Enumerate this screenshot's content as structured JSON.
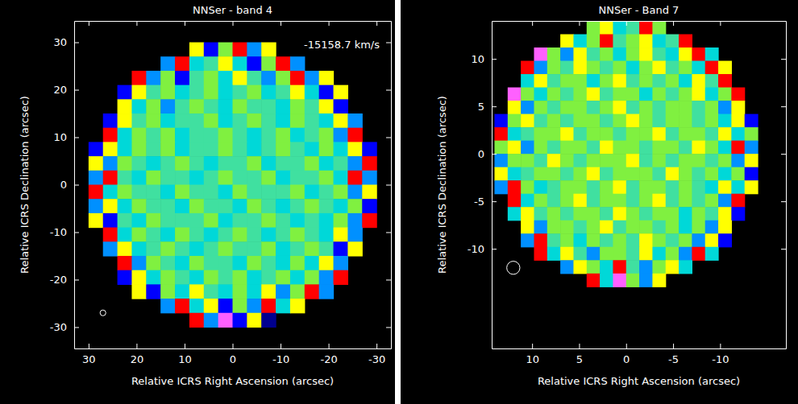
{
  "chart_data": [
    {
      "type": "heatmap",
      "title": "NNSer - band 4",
      "x_label": "Relative ICRS Right Ascension (arcsec)",
      "y_label": "Relative ICRS Declination (arcsec)",
      "annotation": "-15158.7 km/s",
      "xlim": [
        33,
        -33
      ],
      "ylim": [
        -34.5,
        34.5
      ],
      "xticks": [
        30,
        20,
        10,
        0,
        -10,
        -20,
        -30
      ],
      "yticks": [
        -30,
        -20,
        -10,
        0,
        10,
        20,
        30
      ],
      "zlim": [
        -4,
        4
      ],
      "beam": {
        "x": 27,
        "y": -27,
        "size": 1.2
      },
      "x": [
        28.5,
        25.5,
        22.5,
        19.5,
        16.5,
        13.5,
        10.5,
        7.5,
        4.5,
        1.5,
        -1.5,
        -4.5,
        -7.5,
        -10.5,
        -13.5,
        -16.5,
        -19.5,
        -22.5,
        -25.5,
        -28.5
      ],
      "y": [
        28.5,
        25.5,
        22.5,
        19.5,
        16.5,
        13.5,
        10.5,
        7.5,
        4.5,
        1.5,
        -1.5,
        -4.5,
        -7.5,
        -10.5,
        -13.5,
        -16.5,
        -19.5,
        -22.5,
        -25.5,
        -28.5
      ],
      "z": [
        [
          null,
          null,
          null,
          null,
          null,
          null,
          null,
          2,
          -3,
          1,
          3,
          -2,
          2,
          null,
          null,
          null,
          null,
          null,
          null,
          null
        ],
        [
          null,
          null,
          null,
          null,
          null,
          -2,
          3,
          -1,
          0,
          2,
          -1,
          -3,
          1,
          3,
          -2,
          null,
          null,
          null,
          null,
          null
        ],
        [
          null,
          null,
          null,
          3,
          -2,
          1,
          -3,
          0,
          1,
          -1,
          2,
          0,
          -2,
          1,
          3,
          -2,
          2,
          null,
          null,
          null
        ],
        [
          null,
          null,
          -3,
          2,
          0,
          1,
          -1,
          0,
          1,
          -1,
          0,
          1,
          -1,
          0,
          2,
          -1,
          -3,
          2,
          null,
          null
        ],
        [
          null,
          null,
          2,
          -1,
          1,
          -2,
          0,
          1,
          0,
          -1,
          1,
          0,
          0,
          -1,
          1,
          0,
          2,
          -3,
          null,
          null
        ],
        [
          null,
          -3,
          2,
          0,
          1,
          -1,
          0,
          0,
          1,
          -1,
          0,
          1,
          0,
          -1,
          1,
          0,
          -1,
          2,
          -2,
          null
        ],
        [
          null,
          3,
          -1,
          1,
          0,
          1,
          -1,
          0,
          0,
          1,
          0,
          -1,
          0,
          1,
          -1,
          0,
          1,
          -2,
          3,
          null
        ],
        [
          -3,
          2,
          -1,
          1,
          0,
          1,
          -1,
          0,
          0,
          1,
          0,
          -1,
          0,
          1,
          0,
          -1,
          1,
          -1,
          2,
          -3
        ],
        [
          2,
          -2,
          1,
          0,
          -1,
          0,
          1,
          0,
          -1,
          0,
          0,
          1,
          -1,
          0,
          0,
          1,
          -1,
          0,
          -2,
          3
        ],
        [
          -2,
          3,
          0,
          -1,
          1,
          0,
          0,
          -1,
          0,
          1,
          0,
          0,
          1,
          -1,
          0,
          0,
          1,
          -1,
          3,
          -2
        ],
        [
          3,
          -1,
          1,
          0,
          0,
          -1,
          1,
          0,
          0,
          -1,
          1,
          0,
          0,
          0,
          1,
          -1,
          0,
          1,
          -2,
          2
        ],
        [
          -2,
          2,
          -1,
          1,
          0,
          0,
          -1,
          1,
          0,
          0,
          -1,
          1,
          0,
          -1,
          0,
          1,
          0,
          -1,
          1,
          -3
        ],
        [
          2,
          -3,
          0,
          -1,
          1,
          0,
          0,
          0,
          1,
          -1,
          0,
          0,
          1,
          0,
          -1,
          0,
          -1,
          1,
          -2,
          3
        ],
        [
          null,
          3,
          -1,
          1,
          0,
          -1,
          1,
          0,
          -1,
          0,
          1,
          0,
          -1,
          0,
          1,
          0,
          -1,
          2,
          -2,
          null
        ],
        [
          null,
          -2,
          2,
          -1,
          0,
          1,
          0,
          -1,
          0,
          1,
          0,
          0,
          1,
          -1,
          0,
          1,
          0,
          -3,
          2,
          null
        ],
        [
          null,
          null,
          3,
          -2,
          1,
          0,
          -1,
          1,
          0,
          0,
          -1,
          1,
          0,
          -1,
          1,
          -1,
          2,
          -2,
          null,
          null
        ],
        [
          null,
          null,
          -3,
          2,
          -1,
          1,
          0,
          -1,
          1,
          0,
          1,
          -1,
          0,
          1,
          -1,
          1,
          -2,
          3,
          null,
          null
        ],
        [
          null,
          null,
          null,
          2,
          -3,
          1,
          -1,
          2,
          0,
          -1,
          1,
          -1,
          2,
          -2,
          1,
          3,
          -2,
          null,
          null,
          null
        ],
        [
          null,
          null,
          null,
          null,
          null,
          -2,
          3,
          -1,
          2,
          -3,
          1,
          -2,
          3,
          -1,
          2,
          null,
          null,
          null,
          null,
          null
        ],
        [
          null,
          null,
          null,
          null,
          null,
          null,
          null,
          3,
          -2,
          4,
          -3,
          2,
          -4,
          null,
          null,
          null,
          null,
          null,
          null,
          null
        ]
      ]
    },
    {
      "type": "heatmap",
      "title": "NNSer - Band 7",
      "x_label": "Relative ICRS Right Ascension (arcsec)",
      "y_label": "Relative ICRS Declination (arcsec)",
      "xlim": [
        14.3,
        -17
      ],
      "ylim": [
        -20.5,
        14
      ],
      "xticks": [
        10,
        5,
        0,
        -5,
        -10
      ],
      "yticks": [
        -10,
        -5,
        0,
        5,
        10
      ],
      "zlim": [
        -4,
        4
      ],
      "beam": {
        "x": 12,
        "y": -12,
        "size": 1.4
      },
      "x": [
        13.3,
        11.9,
        10.5,
        9.1,
        7.7,
        6.3,
        4.9,
        3.5,
        2.1,
        0.7,
        -0.7,
        -2.1,
        -3.5,
        -4.9,
        -6.3,
        -7.7,
        -9.1,
        -10.5,
        -11.9,
        -13.3
      ],
      "y": [
        13.3,
        11.9,
        10.5,
        9.1,
        7.7,
        6.3,
        4.9,
        3.5,
        2.1,
        0.7,
        -0.7,
        -2.1,
        -3.5,
        -4.9,
        -6.3,
        -7.7,
        -9.1,
        -10.5,
        -11.9,
        -13.3
      ],
      "z": [
        [
          null,
          null,
          null,
          null,
          null,
          null,
          null,
          1,
          2,
          -1,
          0,
          3,
          1,
          null,
          null,
          null,
          null,
          null,
          null,
          null
        ],
        [
          null,
          null,
          null,
          null,
          null,
          2,
          -1,
          1,
          3,
          0,
          1,
          2,
          -1,
          0,
          3,
          null,
          null,
          null,
          null,
          null
        ],
        [
          null,
          null,
          null,
          4,
          1,
          -2,
          2,
          0,
          1,
          -1,
          1,
          2,
          0,
          -1,
          2,
          3,
          -1,
          null,
          null,
          null
        ],
        [
          null,
          null,
          3,
          -2,
          1,
          0,
          2,
          1,
          0,
          1,
          -1,
          1,
          2,
          0,
          1,
          -1,
          3,
          2,
          null,
          null
        ],
        [
          null,
          null,
          -1,
          2,
          0,
          1,
          1,
          -1,
          1,
          2,
          0,
          1,
          0,
          1,
          -1,
          2,
          0,
          3,
          null,
          null
        ],
        [
          null,
          4,
          1,
          -1,
          1,
          0,
          1,
          2,
          0,
          1,
          1,
          -1,
          1,
          0,
          1,
          2,
          -1,
          1,
          3,
          null
        ],
        [
          null,
          2,
          -2,
          1,
          0,
          1,
          1,
          0,
          1,
          2,
          0,
          1,
          0,
          1,
          1,
          0,
          1,
          -2,
          2,
          null
        ],
        [
          -3,
          1,
          2,
          0,
          1,
          0,
          1,
          1,
          0,
          1,
          2,
          1,
          0,
          1,
          1,
          0,
          1,
          -1,
          2,
          -3
        ],
        [
          3,
          -1,
          0,
          1,
          1,
          2,
          0,
          1,
          1,
          0,
          1,
          1,
          2,
          0,
          1,
          1,
          0,
          2,
          -1,
          1
        ],
        [
          1,
          2,
          -2,
          1,
          0,
          1,
          1,
          0,
          2,
          1,
          1,
          0,
          1,
          1,
          0,
          2,
          1,
          -1,
          3,
          -2
        ],
        [
          -2,
          1,
          1,
          0,
          2,
          1,
          0,
          1,
          1,
          1,
          2,
          0,
          1,
          0,
          1,
          1,
          0,
          1,
          -2,
          2
        ],
        [
          2,
          -1,
          0,
          1,
          1,
          0,
          1,
          2,
          0,
          1,
          1,
          1,
          0,
          2,
          1,
          0,
          1,
          -1,
          1,
          -3
        ],
        [
          -2,
          3,
          1,
          -1,
          0,
          1,
          1,
          0,
          1,
          2,
          0,
          1,
          1,
          0,
          1,
          0,
          -1,
          2,
          -1,
          2
        ],
        [
          null,
          3,
          -1,
          1,
          0,
          1,
          2,
          0,
          1,
          1,
          0,
          1,
          2,
          0,
          1,
          0,
          1,
          -2,
          3,
          null
        ],
        [
          null,
          -1,
          2,
          0,
          1,
          0,
          1,
          1,
          0,
          2,
          1,
          0,
          1,
          1,
          -1,
          1,
          0,
          2,
          -3,
          null
        ],
        [
          null,
          null,
          2,
          -2,
          1,
          1,
          0,
          1,
          2,
          0,
          1,
          1,
          0,
          1,
          -1,
          1,
          -2,
          2,
          null,
          null
        ],
        [
          null,
          null,
          -2,
          3,
          0,
          1,
          -1,
          1,
          0,
          1,
          0,
          2,
          1,
          0,
          1,
          -2,
          2,
          -3,
          null,
          null
        ],
        [
          null,
          null,
          null,
          3,
          -1,
          2,
          0,
          -2,
          1,
          1,
          0,
          2,
          -1,
          1,
          -2,
          3,
          -1,
          null,
          null,
          null
        ],
        [
          null,
          null,
          null,
          null,
          null,
          -2,
          2,
          1,
          -1,
          3,
          0,
          -2,
          1,
          2,
          -1,
          null,
          null,
          null,
          null,
          null
        ],
        [
          null,
          null,
          null,
          null,
          null,
          null,
          null,
          3,
          -1,
          4,
          1,
          -2,
          2,
          null,
          null,
          null,
          null,
          null,
          null,
          null
        ]
      ]
    }
  ]
}
